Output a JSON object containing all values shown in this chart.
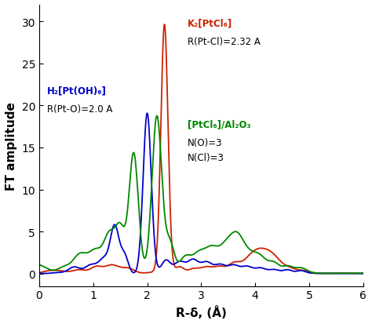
{
  "xlabel": "R-δ, (Å)",
  "ylabel": "FT amplitude",
  "xlim": [
    0,
    6
  ],
  "ylim": [
    -1.5,
    32
  ],
  "yticks": [
    0,
    5,
    10,
    15,
    20,
    25,
    30
  ],
  "xticks": [
    0,
    1,
    2,
    3,
    4,
    5,
    6
  ],
  "annotation_red": "K₂[PtCl₆]",
  "annotation_red2": "R(Pt-Cl)=2.32 A",
  "annotation_blue": "H₂[Pt(OH)₆]",
  "annotation_blue2": "R(Pt-O)=2.0 A",
  "annotation_green": "[PtCl₆]/Al₂O₃",
  "annotation_green2": "N(O)=3",
  "annotation_green3": "N(Cl)=3",
  "red_color": "#cc2200",
  "blue_color": "#0000cc",
  "green_color": "#008800",
  "background": "#ffffff"
}
